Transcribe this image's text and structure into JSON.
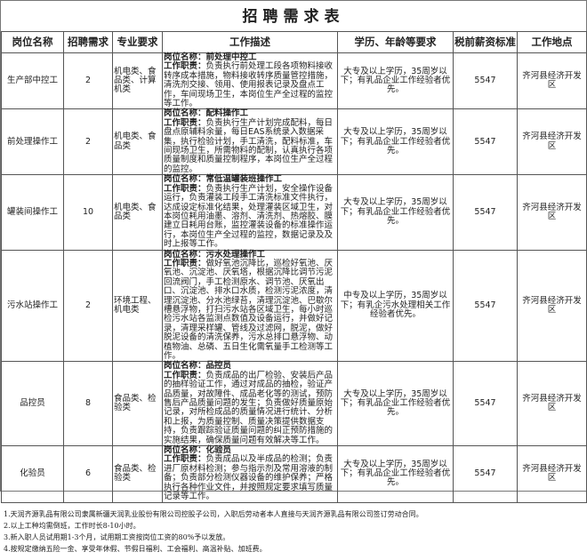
{
  "title": "招聘需求表",
  "headers": [
    "岗位名称",
    "招聘需求",
    "专业要求",
    "工作描述",
    "学历、年龄等要求",
    "税前薪资标准",
    "工作地点"
  ],
  "rows": [
    {
      "position": "生产部中控工",
      "count": "2",
      "major": "机电类、食品类、计算机类",
      "desc_title": "岗位名称：前处理中控工",
      "desc_label": "工作职责：",
      "desc_text": "负责执行前处理工段各项物料接收转序成本措施，物料接收转序质量管控措施，清洗剂交接、领用、使用报表记录及盘点工作，车间现场卫生，本岗位生产全过程的监控等工作。",
      "requirement": "大专及以上学历，35周岁以下；有乳品企业工作经验者优先。",
      "salary": "5547",
      "location": "齐河县经济开发区"
    },
    {
      "position": "前处理操作工",
      "count": "2",
      "major": "机电类、食品类",
      "desc_title": "岗位名称：配料操作工",
      "desc_label": "工作职责：",
      "desc_text": "负责执行生产计划完成配料，每日盘点原辅料余量，每日EAS系统录入数据采集，执行检验计划，手工清洗，配料标准，车间现场卫生，所需物料的配制，认真执行各项质量制度和质量控制程序，本岗位生产全过程的监控。",
      "requirement": "大专及以上学历，35周岁以下；有乳品企业工作经验者优先。",
      "salary": "5547",
      "location": "齐河县经济开发区"
    },
    {
      "position": "罐装间操作工",
      "count": "10",
      "major": "机电类、食品类",
      "desc_title": "岗位名称：常低温罐装班操作工",
      "desc_label": "工作职责：",
      "desc_text": "负责执行生产计划，安全操作设备运行，负责灌装工段手工清洗标准文件执行，达成设定标准化结果，处理灌装区域卫生，对本岗位耗用油墨、溶剂、清洗剂、热熔胶、膜建立日耗用台账，监控灌装设备的标准操作运行，本岗位生产全过程的监控，数据记录及及时上报等工作。",
      "requirement": "大专及以上学历，35周岁以下；有乳品企业工作经验者优先。",
      "salary": "5547",
      "location": "齐河县经济开发区"
    },
    {
      "position": "污水站操作工",
      "count": "2",
      "major": "环境工程、机电类",
      "desc_title": "岗位名称：污水处理操作工",
      "desc_label": "工作职责：",
      "desc_text": "做好氧池沉降比，巡检好氧池、厌氧池、沉淀池、厌氧塔，根据沉降比调节污泥回流阀门，手工检测原水、调节池、厌氧出口、沉淀池、排水口水质，检测污泥浓度，清理沉淀池、分水池绿苔，清理沉淀池、巴歇尔槽悬浮物，打扫污水站各区域卫生，每小时巡检污水站各监测点数值及设备运行，并做好记录，清理采样罐、管线及过滤网，脱泥，做好脱泥设备的清洗保养，污水总排口悬浮物、动植物油、总磷、五日生化需氧量手工检测等工作。",
      "requirement": "中专及以上学历，35周岁以下；有乳企污水处理相关工作经验者优先。",
      "salary": "5547",
      "location": "齐河县经济开发区"
    },
    {
      "position": "品控员",
      "count": "8",
      "major": "食品类、检验类",
      "desc_title": "岗位名称：品控员",
      "desc_label": "工作职责：",
      "desc_text": "负责成品的出厂检验、安装后产品的抽样验证工作，通过对成品的抽检，验证产品质量，对故障件、成品老化等的测试，预防售后产品质量问题的发生；负责做好质量原始记录，对所检成品的质量情况进行统计、分析和上报，为质量控制、质量决策提供数据支持，负责跟踪验证质量问题的纠正预防措施的实施结果，确保质量问题有效解决等工作。",
      "requirement": "大专及以上学历，35周岁以下；有乳品企业工作经验者优先。",
      "salary": "5547",
      "location": "齐河县经济开发区"
    },
    {
      "position": "化验员",
      "count": "6",
      "major": "食品类、检验类",
      "desc_title": "岗位名称：化验员",
      "desc_label": "工作职责：",
      "desc_text": "负责成品以及半成品的检测；负责进厂原材料检测；参与指示剂及常用溶液的制备；负责部分检测仪器设备的维护保养；严格执行各种作业文件，并按照规定要求填写质量记录等工作。",
      "requirement": "大专及以上学历，35周岁以下；有乳品企业工作经验者优先。",
      "salary": "5547",
      "location": "齐河县经济开发区"
    }
  ],
  "notes": [
    "1.天润齐源乳品有限公司隶属新疆天润乳业股份有限公司控股子公司，入职后劳动者本人直接与天润齐源乳品有限公司签订劳动合同。",
    "2.以上工种均需倒班，工作时长8-10小时。",
    "3.新入职人员试用期1-3个月，试用期工资按岗位工资的80%予以发放。",
    "4.按规定缴纳五险一金、享受年休假、节假日福利、工会福利、高温补贴、加班费。"
  ]
}
